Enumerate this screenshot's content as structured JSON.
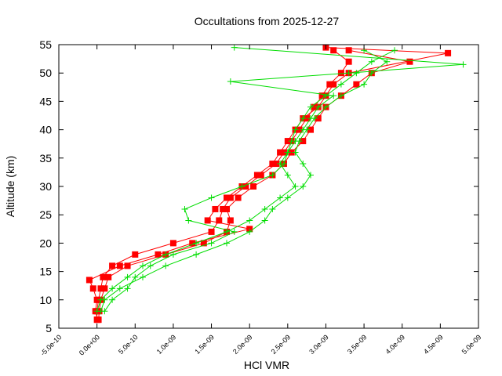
{
  "chart_data": {
    "type": "line",
    "title": "Occultations from 2025-12-27",
    "xlabel": "HCl VMR",
    "ylabel": "Altitude (km)",
    "xlim": [
      -5e-10,
      5e-09
    ],
    "ylim": [
      5,
      55
    ],
    "grid": false,
    "legend": "none",
    "x_ticks": [
      "-5.0e-10",
      "0.0e+00",
      "5.0e-10",
      "1.0e-09",
      "1.5e-09",
      "2.0e-09",
      "2.5e-09",
      "3.0e-09",
      "3.5e-09",
      "4.0e-09",
      "4.5e-09",
      "5.0e-09"
    ],
    "x_tick_values": [
      -5e-10,
      0,
      5e-10,
      1e-09,
      1.5e-09,
      2e-09,
      2.5e-09,
      3e-09,
      3.5e-09,
      4e-09,
      4.5e-09,
      5e-09
    ],
    "y_ticks": [
      "5",
      "10",
      "15",
      "20",
      "25",
      "30",
      "35",
      "40",
      "45",
      "50",
      "55"
    ],
    "y_tick_values": [
      5,
      10,
      15,
      20,
      25,
      30,
      35,
      40,
      45,
      50,
      55
    ],
    "series": [
      {
        "color": "#ff0000",
        "marker": "filled-square",
        "profiles": [
          {
            "altitude": [
              6.5,
              8,
              10,
              12,
              14,
              16,
              18,
              20,
              22,
              24,
              26,
              28,
              30,
              32,
              34,
              36,
              38,
              40,
              42,
              44,
              46,
              48,
              50,
              52,
              54
            ],
            "vmr": [
              0,
              0,
              2e-11,
              5e-11,
              8e-11,
              2e-10,
              5e-10,
              1e-09,
              1.5e-09,
              1.6e-09,
              1.65e-09,
              1.75e-09,
              1.95e-09,
              2.15e-09,
              2.35e-09,
              2.45e-09,
              2.55e-09,
              2.65e-09,
              2.75e-09,
              2.85e-09,
              2.95e-09,
              3.05e-09,
              3.2e-09,
              3.3e-09,
              3.1e-09
            ]
          },
          {
            "altitude": [
              6.5,
              8,
              10,
              12,
              14,
              16,
              18,
              20,
              22,
              24,
              26,
              28,
              30,
              32,
              34,
              36,
              38,
              40,
              42,
              44,
              46,
              48,
              50,
              52,
              54
            ],
            "vmr": [
              2e-11,
              3e-11,
              5e-11,
              1e-10,
              1.5e-10,
              4e-10,
              9e-10,
              1.4e-09,
              1.7e-09,
              1.75e-09,
              1.7e-09,
              1.85e-09,
              2.05e-09,
              2.3e-09,
              2.45e-09,
              2.55e-09,
              2.7e-09,
              2.8e-09,
              2.9e-09,
              3e-09,
              3.2e-09,
              3.4e-09,
              3.6e-09,
              4.1e-09,
              3.3e-09
            ]
          },
          {
            "altitude": [
              6.5,
              8,
              10,
              12,
              13.5,
              16,
              18,
              20,
              22.5,
              24,
              26,
              28,
              30,
              32,
              34,
              36,
              38,
              40,
              42,
              44,
              46,
              48,
              50,
              53.5,
              54.5
            ],
            "vmr": [
              1e-11,
              -2e-11,
              0,
              -5e-11,
              -1e-10,
              3e-10,
              8e-10,
              1.25e-09,
              2e-09,
              1.45e-09,
              1.55e-09,
              1.7e-09,
              1.9e-09,
              2.1e-09,
              2.3e-09,
              2.4e-09,
              2.5e-09,
              2.6e-09,
              2.7e-09,
              2.9e-09,
              3e-09,
              3.1e-09,
              3.3e-09,
              4.6e-09,
              3e-09
            ]
          }
        ]
      },
      {
        "color": "#00dd00",
        "marker": "plus",
        "profiles": [
          {
            "altitude": [
              8,
              10,
              12,
              14,
              16,
              18,
              20,
              22,
              24,
              26,
              28,
              30,
              32,
              34,
              36,
              38,
              40,
              42,
              44,
              46,
              48,
              50,
              52,
              54
            ],
            "vmr": [
              5e-11,
              1e-10,
              3e-10,
              6e-10,
              9e-10,
              1.3e-09,
              1.7e-09,
              2e-09,
              2.2e-09,
              2.3e-09,
              2.5e-09,
              2.7e-09,
              2.8e-09,
              2.7e-09,
              2.6e-09,
              2.65e-09,
              2.75e-09,
              2.85e-09,
              3e-09,
              3.2e-09,
              3.5e-09,
              3.6e-09,
              3.8e-09,
              3.5e-09
            ]
          },
          {
            "altitude": [
              8,
              10,
              12,
              14,
              16,
              18,
              20,
              22,
              24,
              26,
              28,
              30,
              32,
              34,
              36,
              38,
              40,
              42,
              44,
              46,
              48.5,
              50,
              51.5,
              54.5
            ],
            "vmr": [
              1e-10,
              2e-10,
              4e-10,
              5e-10,
              7e-10,
              1e-09,
              1.5e-09,
              1.8e-09,
              1.2e-09,
              1.15e-09,
              1.5e-09,
              1.9e-09,
              2.3e-09,
              2.45e-09,
              2.5e-09,
              2.6e-09,
              2.7e-09,
              2.8e-09,
              2.9e-09,
              3.1e-09,
              1.75e-09,
              3.3e-09,
              4.8e-09,
              1.8e-09
            ]
          },
          {
            "altitude": [
              8,
              10,
              12,
              14,
              16,
              18,
              20,
              22,
              24,
              26,
              28,
              30,
              32,
              34,
              36,
              38,
              40,
              42,
              44,
              46,
              48,
              50,
              52,
              54
            ],
            "vmr": [
              0,
              5e-11,
              2e-10,
              4e-10,
              6e-10,
              9e-10,
              1.3e-09,
              1.7e-09,
              2e-09,
              2.2e-09,
              2.4e-09,
              2.6e-09,
              2.5e-09,
              2.4e-09,
              2.5e-09,
              2.55e-09,
              2.6e-09,
              2.7e-09,
              2.8e-09,
              3e-09,
              3.2e-09,
              3.4e-09,
              3.6e-09,
              3.9e-09
            ]
          }
        ]
      }
    ]
  }
}
